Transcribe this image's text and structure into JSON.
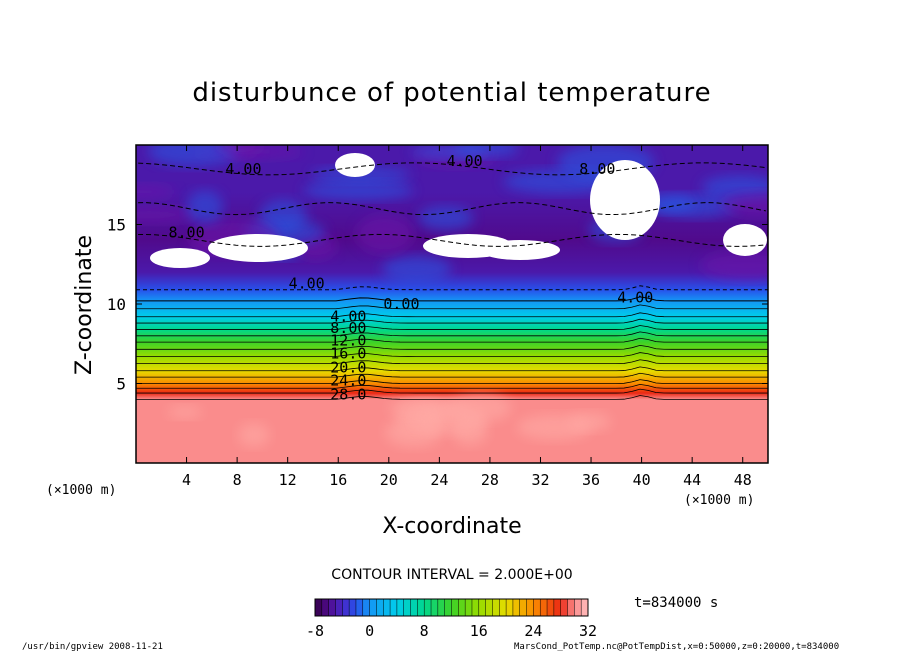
{
  "chart_data": {
    "type": "heatmap",
    "title": "disturbunce of potential temperature",
    "xlabel": "X-coordinate",
    "ylabel": "Z-coordinate",
    "x_unit_left": "(×1000 m)",
    "x_unit_right": "(×1000 m)",
    "xlim": [
      0,
      50
    ],
    "ylim": [
      0,
      20
    ],
    "x_ticks": [
      4,
      8,
      12,
      16,
      20,
      24,
      28,
      32,
      36,
      40,
      44,
      48
    ],
    "y_ticks": [
      5,
      10,
      15
    ],
    "contour_interval_label": "CONTOUR INTERVAL = 2.000E+00",
    "time_label": "t=834000 s",
    "colorbar": {
      "range": [
        -8,
        32
      ],
      "ticks": [
        -8,
        0,
        8,
        16,
        24,
        32
      ]
    },
    "vertical_profile": [
      {
        "z": 0.0,
        "value": 30
      },
      {
        "z": 4.0,
        "value": 30
      },
      {
        "z": 4.4,
        "value": 28
      },
      {
        "z": 5.0,
        "value": 24
      },
      {
        "z": 5.8,
        "value": 20
      },
      {
        "z": 6.7,
        "value": 16
      },
      {
        "z": 7.6,
        "value": 12
      },
      {
        "z": 8.4,
        "value": 8
      },
      {
        "z": 9.2,
        "value": 4
      },
      {
        "z": 10.2,
        "value": 0
      },
      {
        "z": 10.9,
        "value": -2
      },
      {
        "z": 12.0,
        "value": -5
      },
      {
        "z": 14.0,
        "value": -6
      },
      {
        "z": 17.0,
        "value": -5
      },
      {
        "z": 20.0,
        "value": -5
      }
    ],
    "contour_labels": [
      {
        "text": "28.0",
        "x": 16.8,
        "z": 4.3
      },
      {
        "text": "24.0",
        "x": 16.8,
        "z": 5.2
      },
      {
        "text": "20.0",
        "x": 16.8,
        "z": 6.0
      },
      {
        "text": "16.0",
        "x": 16.8,
        "z": 6.9
      },
      {
        "text": "12.0",
        "x": 16.8,
        "z": 7.7
      },
      {
        "text": "8.00",
        "x": 16.8,
        "z": 8.5
      },
      {
        "text": "4.00",
        "x": 16.8,
        "z": 9.2
      },
      {
        "text": "0.00",
        "x": 21.0,
        "z": 10.0
      },
      {
        "text": "4.00",
        "x": 39.5,
        "z": 10.4
      },
      {
        "text": "4.00",
        "x": 13.5,
        "z": 11.3
      },
      {
        "text": "8.00",
        "x": 4.0,
        "z": 14.5
      },
      {
        "text": "4.00",
        "x": 8.5,
        "z": 18.5
      },
      {
        "text": "4.00",
        "x": 26.0,
        "z": 19.0
      },
      {
        "text": "8.00",
        "x": 36.5,
        "z": 18.5
      }
    ]
  },
  "footer": {
    "left": "/usr/bin/gpview   2008-11-21",
    "right": "MarsCond_PotTemp.nc@PotTempDist,x=0:50000,z=0:20000,t=834000"
  }
}
